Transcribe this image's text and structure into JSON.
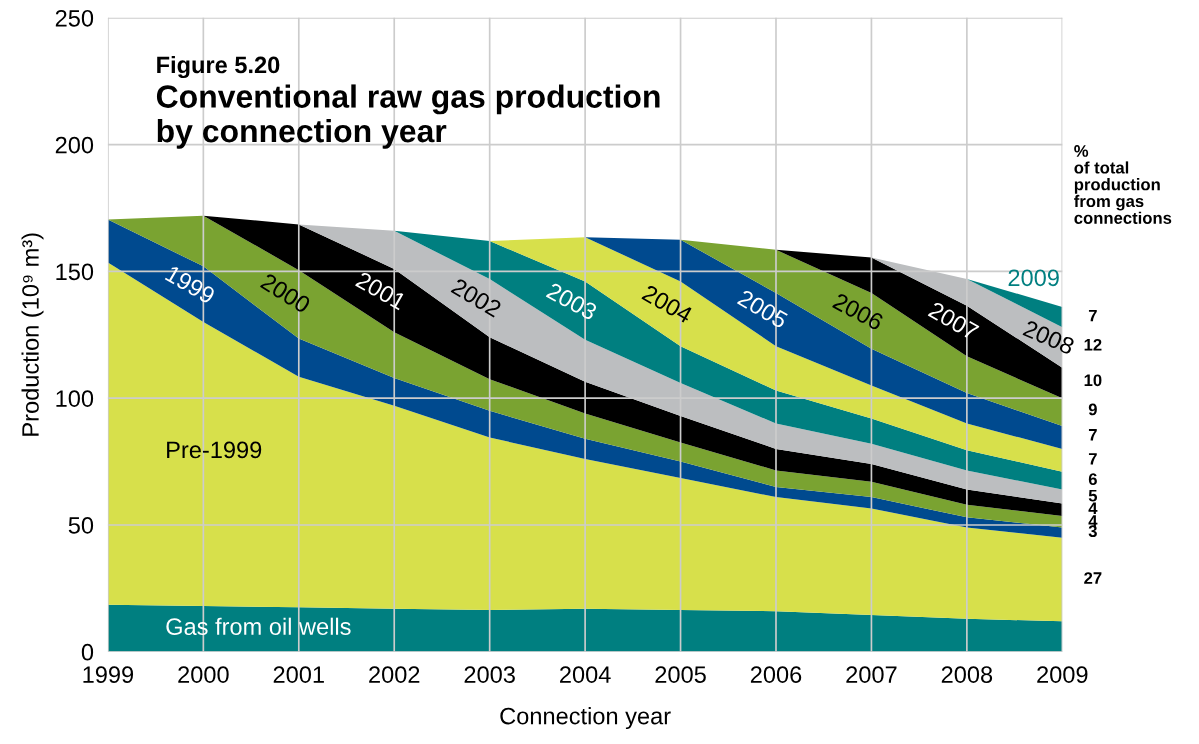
{
  "chart_data": {
    "type": "area",
    "stacked": true,
    "subtitle": "Figure 5.20",
    "title": "Conventional raw gas production\nby connection year",
    "xlabel": "Connection year",
    "ylabel": "Production (10⁹ m³)",
    "categories": [
      "1999",
      "2000",
      "2001",
      "2002",
      "2003",
      "2004",
      "2005",
      "2006",
      "2007",
      "2008",
      "2009"
    ],
    "ylim": [
      0,
      250
    ],
    "yticks": [
      0,
      50,
      100,
      150,
      200,
      250
    ],
    "grid": true,
    "annotations": [
      "%\nof total\nproduction\nfrom gas\nconnections",
      {
        "text": "7",
        "x": "2009",
        "y": 132
      },
      {
        "text": "12",
        "x": "2009",
        "y": 120.5
      },
      {
        "text": "10",
        "x": "2009",
        "y": 106.5
      },
      {
        "text": "9",
        "x": "2009",
        "y": 95
      },
      {
        "text": "7",
        "x": "2009",
        "y": 85
      },
      {
        "text": "7",
        "x": "2009",
        "y": 75.5
      },
      {
        "text": "6",
        "x": "2009",
        "y": 67.5
      },
      {
        "text": "5",
        "x": "2009",
        "y": 61
      },
      {
        "text": "4",
        "x": "2009",
        "y": 56
      },
      {
        "text": "4",
        "x": "2009",
        "y": 51
      },
      {
        "text": "3",
        "x": "2009",
        "y": 47
      },
      {
        "text": "27",
        "x": "2009",
        "y": 28.5
      }
    ],
    "series": [
      {
        "name": "Gas from oil wells",
        "color": "#007f80",
        "values": [
          18.5,
          18,
          17.5,
          17,
          16.5,
          17,
          16.5,
          16,
          14.5,
          13,
          12
        ]
      },
      {
        "name": "Pre-1999",
        "color": "#d7e04b",
        "values": [
          135,
          112,
          91,
          80,
          68,
          59,
          52,
          45,
          42,
          36,
          33
        ]
      },
      {
        "name": "1999",
        "color": "#004a8f",
        "values": [
          17,
          22,
          15,
          11,
          10.5,
          8,
          6.5,
          4,
          4.5,
          4,
          4
        ]
      },
      {
        "name": "2000",
        "color": "#7aa331",
        "values": [
          0,
          20,
          27,
          18,
          12.5,
          10,
          7.5,
          6.5,
          6,
          5,
          4.5
        ]
      },
      {
        "name": "2001",
        "color": "#000000",
        "values": [
          null,
          0,
          18,
          25,
          16.5,
          12.5,
          10.5,
          8.5,
          7,
          6,
          5
        ]
      },
      {
        "name": "2002",
        "color": "#bcbec0",
        "values": [
          null,
          null,
          0,
          15,
          23,
          16.5,
          13,
          10,
          8,
          7.5,
          5.5
        ]
      },
      {
        "name": "2003",
        "color": "#007f80",
        "values": [
          null,
          null,
          null,
          0,
          15,
          23,
          14.5,
          13,
          10,
          8,
          7
        ]
      },
      {
        "name": "2004",
        "color": "#d7e04b",
        "values": [
          null,
          null,
          null,
          null,
          0,
          17.5,
          25.5,
          17.5,
          13,
          10.5,
          9
        ]
      },
      {
        "name": "2005",
        "color": "#004a8f",
        "values": [
          null,
          null,
          null,
          null,
          null,
          0,
          16.5,
          21,
          14.5,
          12,
          9
        ]
      },
      {
        "name": "2006",
        "color": "#7aa331",
        "values": [
          null,
          null,
          null,
          null,
          null,
          null,
          0,
          17,
          22,
          14.5,
          11
        ]
      },
      {
        "name": "2007",
        "color": "#000000",
        "values": [
          null,
          null,
          null,
          null,
          null,
          null,
          null,
          0,
          14,
          20,
          12
        ]
      },
      {
        "name": "2008",
        "color": "#bcbec0",
        "values": [
          null,
          null,
          null,
          null,
          null,
          null,
          null,
          null,
          0,
          10.5,
          16
        ]
      },
      {
        "name": "2009",
        "color": "#007f80",
        "values": [
          null,
          null,
          null,
          null,
          null,
          null,
          null,
          null,
          null,
          0,
          8
        ]
      }
    ]
  }
}
